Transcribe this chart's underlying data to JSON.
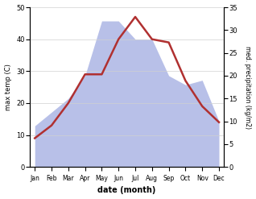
{
  "months": [
    "Jan",
    "Feb",
    "Mar",
    "Apr",
    "May",
    "Jun",
    "Jul",
    "Aug",
    "Sep",
    "Oct",
    "Nov",
    "Dec"
  ],
  "temp": [
    9,
    13,
    20,
    29,
    29,
    40,
    47,
    40,
    39,
    27,
    19,
    14
  ],
  "precip": [
    9,
    12,
    15,
    20,
    32,
    32,
    28,
    28,
    20,
    18,
    19,
    10
  ],
  "temp_color": "#b03030",
  "precip_fill_color": "#b8c0e8",
  "xlabel": "date (month)",
  "ylabel_left": "max temp (C)",
  "ylabel_right": "med. precipitation (kg/m2)",
  "ylim_left": [
    0,
    50
  ],
  "ylim_right": [
    0,
    35
  ],
  "yticks_left": [
    0,
    10,
    20,
    30,
    40,
    50
  ],
  "yticks_right": [
    0,
    5,
    10,
    15,
    20,
    25,
    30,
    35
  ]
}
